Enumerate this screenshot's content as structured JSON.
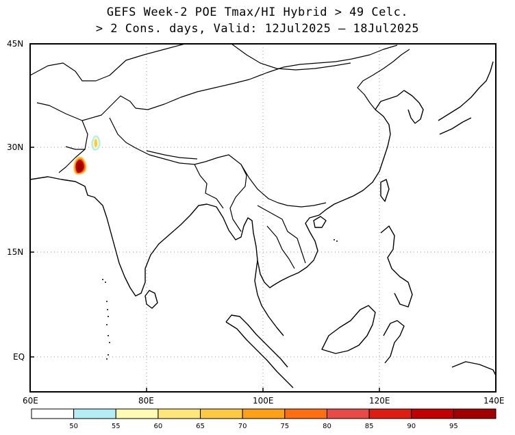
{
  "title": {
    "line1": "GEFS Week-2 POE Tmax/HI Hybrid > 49 Celc.",
    "line2": "> 2 Cons. days, Valid: 12Jul2025 – 18Jul2025"
  },
  "map": {
    "lat_labels": [
      "45N",
      "30N",
      "15N",
      "EQ"
    ],
    "lon_labels": [
      "60E",
      "80E",
      "100E",
      "120E",
      "140E"
    ],
    "gridlines": "dotted"
  },
  "colorbar": {
    "colors": [
      "#ffffff",
      "#b4eef4",
      "#fffab4",
      "#ffe678",
      "#ffc845",
      "#ffa018",
      "#ff6e10",
      "#e84a48",
      "#dc1e12",
      "#c00000",
      "#a00000"
    ],
    "labels": [
      "50",
      "55",
      "60",
      "65",
      "70",
      "75",
      "80",
      "85",
      "90",
      "95"
    ]
  }
}
